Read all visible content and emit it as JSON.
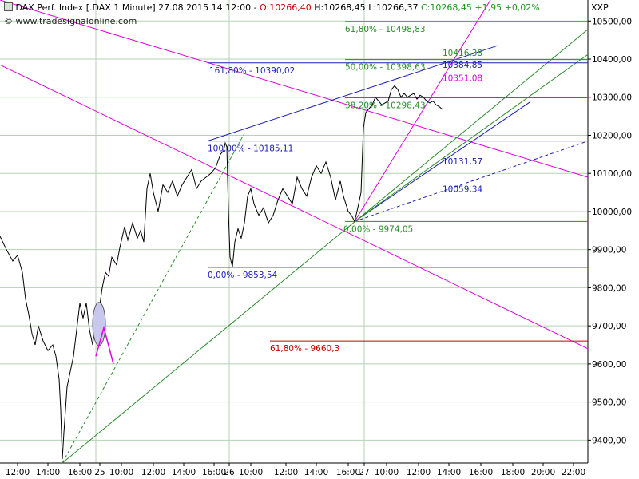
{
  "header": {
    "title": "DAX Perf. Index [.DAX  1 Minute] 27.08.2015 14:12:00 -",
    "ohlc": {
      "open": "O:10266,40",
      "high": "H:10268,45",
      "low": "L:10266,37",
      "close": "C:10268,45",
      "change": "+1,95 +0,02%"
    },
    "copyright": "© www.tradesignalonline.com",
    "symbol": "XXP"
  },
  "colors": {
    "price": "#000000",
    "grid": "#b4d2b4",
    "fib_blue": "#1e1eb4",
    "fib_green": "#2a8c2a",
    "magenta": "#e000e0",
    "red": "#c80000",
    "ellipse": "#c8c8ee"
  },
  "chart_data": {
    "type": "line",
    "ylim": [
      9340,
      10555
    ],
    "x_range": [
      0,
      730
    ],
    "y_ticks": [
      "10500,00",
      "10400,00",
      "10300,00",
      "10200,00",
      "10100,00",
      "10000,00",
      "9900,00",
      "9800,00",
      "9700,00",
      "9600,00",
      "9500,00",
      "9400,00"
    ],
    "y_tick_values": [
      10500,
      10400,
      10300,
      10200,
      10100,
      10000,
      9900,
      9800,
      9700,
      9600,
      9500,
      9400
    ],
    "x_ticks": [
      {
        "label": "12:00",
        "x": 22
      },
      {
        "label": "14:00",
        "x": 60
      },
      {
        "label": "16:00",
        "x": 100
      },
      {
        "label": "25",
        "x": 125
      },
      {
        "label": "10:00",
        "x": 152
      },
      {
        "label": "12:00",
        "x": 192
      },
      {
        "label": "14:00",
        "x": 230
      },
      {
        "label": "16:00",
        "x": 268
      },
      {
        "label": "26",
        "x": 287
      },
      {
        "label": "10:00",
        "x": 314
      },
      {
        "label": "12:00",
        "x": 358
      },
      {
        "label": "14:00",
        "x": 396
      },
      {
        "label": "16:00",
        "x": 436
      },
      {
        "label": "27",
        "x": 456
      },
      {
        "label": "10:00",
        "x": 484
      },
      {
        "label": "12:00",
        "x": 524
      },
      {
        "label": "14:00",
        "x": 562
      },
      {
        "label": "16:00",
        "x": 602
      },
      {
        "label": "18:00",
        "x": 642
      },
      {
        "label": "20:00",
        "x": 680
      },
      {
        "label": "22:00",
        "x": 718
      }
    ],
    "day_separators": [
      120,
      287,
      456
    ],
    "price": [
      [
        0,
        9935
      ],
      [
        8,
        9900
      ],
      [
        16,
        9870
      ],
      [
        22,
        9885
      ],
      [
        28,
        9840
      ],
      [
        32,
        9770
      ],
      [
        36,
        9730
      ],
      [
        40,
        9680
      ],
      [
        44,
        9650
      ],
      [
        48,
        9700
      ],
      [
        54,
        9660
      ],
      [
        60,
        9635
      ],
      [
        66,
        9650
      ],
      [
        70,
        9620
      ],
      [
        74,
        9560
      ],
      [
        76,
        9480
      ],
      [
        78,
        9350
      ],
      [
        80,
        9420
      ],
      [
        84,
        9540
      ],
      [
        88,
        9580
      ],
      [
        92,
        9620
      ],
      [
        96,
        9690
      ],
      [
        100,
        9760
      ],
      [
        104,
        9720
      ],
      [
        108,
        9760
      ],
      [
        112,
        9690
      ],
      [
        116,
        9650
      ],
      [
        120,
        9720
      ],
      [
        124,
        9740
      ],
      [
        128,
        9800
      ],
      [
        132,
        9840
      ],
      [
        136,
        9830
      ],
      [
        140,
        9880
      ],
      [
        146,
        9860
      ],
      [
        150,
        9905
      ],
      [
        156,
        9960
      ],
      [
        160,
        9925
      ],
      [
        166,
        9970
      ],
      [
        172,
        9930
      ],
      [
        176,
        9950
      ],
      [
        180,
        9920
      ],
      [
        184,
        10060
      ],
      [
        188,
        10100
      ],
      [
        192,
        10050
      ],
      [
        198,
        10000
      ],
      [
        204,
        10070
      ],
      [
        210,
        10050
      ],
      [
        216,
        10080
      ],
      [
        222,
        10040
      ],
      [
        228,
        10070
      ],
      [
        234,
        10090
      ],
      [
        240,
        10110
      ],
      [
        246,
        10060
      ],
      [
        252,
        10080
      ],
      [
        258,
        10090
      ],
      [
        264,
        10100
      ],
      [
        270,
        10115
      ],
      [
        276,
        10150
      ],
      [
        280,
        10160
      ],
      [
        282,
        10180
      ],
      [
        284,
        10170
      ],
      [
        286,
        10000
      ],
      [
        288,
        9880
      ],
      [
        291,
        9855
      ],
      [
        294,
        9920
      ],
      [
        298,
        9955
      ],
      [
        302,
        9930
      ],
      [
        306,
        9970
      ],
      [
        310,
        10040
      ],
      [
        314,
        10060
      ],
      [
        318,
        10020
      ],
      [
        324,
        9990
      ],
      [
        330,
        10010
      ],
      [
        336,
        9970
      ],
      [
        342,
        9990
      ],
      [
        348,
        10030
      ],
      [
        354,
        10060
      ],
      [
        360,
        10040
      ],
      [
        366,
        10020
      ],
      [
        372,
        10090
      ],
      [
        378,
        10060
      ],
      [
        384,
        10040
      ],
      [
        390,
        10090
      ],
      [
        396,
        10120
      ],
      [
        402,
        10100
      ],
      [
        408,
        10130
      ],
      [
        414,
        10090
      ],
      [
        420,
        10030
      ],
      [
        426,
        10080
      ],
      [
        430,
        10040
      ],
      [
        436,
        10000
      ],
      [
        440,
        9990
      ],
      [
        444,
        9974
      ],
      [
        448,
        10010
      ],
      [
        452,
        10050
      ],
      [
        455,
        10220
      ],
      [
        458,
        10260
      ],
      [
        462,
        10270
      ],
      [
        466,
        10280
      ],
      [
        470,
        10300
      ],
      [
        474,
        10290
      ],
      [
        478,
        10280
      ],
      [
        482,
        10285
      ],
      [
        486,
        10290
      ],
      [
        490,
        10320
      ],
      [
        494,
        10330
      ],
      [
        498,
        10320
      ],
      [
        502,
        10300
      ],
      [
        506,
        10310
      ],
      [
        510,
        10300
      ],
      [
        514,
        10305
      ],
      [
        518,
        10310
      ],
      [
        522,
        10295
      ],
      [
        526,
        10305
      ],
      [
        530,
        10300
      ],
      [
        534,
        10290
      ],
      [
        538,
        10285
      ],
      [
        542,
        10290
      ],
      [
        546,
        10280
      ],
      [
        550,
        10275
      ],
      [
        554,
        10268
      ]
    ],
    "levels": [
      {
        "label": "61,80% - 10498,83",
        "value": 10498.83,
        "color": "fib_green",
        "x1": 432,
        "x2": 736,
        "label_x": 432
      },
      {
        "label": "50,00% - 10398,63",
        "value": 10398.63,
        "color": "fib_green",
        "x1": 432,
        "x2": 736,
        "label_x": 432
      },
      {
        "label": "161,80% - 10390,02",
        "value": 10390.02,
        "color": "fib_blue",
        "x1": 260,
        "x2": 736,
        "label_x": 262
      },
      {
        "label": "38,20% - 10298,43",
        "value": 10298.43,
        "color": "fib_green",
        "x1": 432,
        "x2": 736,
        "label_x": 432
      },
      {
        "label": "100,00% - 10185,11",
        "value": 10185.11,
        "color": "fib_blue",
        "x1": 260,
        "x2": 736,
        "label_x": 260
      },
      {
        "label": "0,00% - 9974,05",
        "value": 9974.05,
        "color": "fib_green",
        "x1": 432,
        "x2": 736,
        "label_x": 430
      },
      {
        "label": "0,00% - 9853,54",
        "value": 9853.54,
        "color": "fib_blue",
        "x1": 260,
        "x2": 736,
        "label_x": 260
      },
      {
        "label": "61,80% - 9660,3",
        "value": 9660.3,
        "color": "red",
        "x1": 338,
        "x2": 736,
        "label_x": 338
      }
    ],
    "annotations": [
      {
        "label": "10416,38",
        "value": 10416.38,
        "color": "fib_green",
        "x": 554
      },
      {
        "label": "10384,85",
        "value": 10384.85,
        "color": "fib_blue",
        "x": 554
      },
      {
        "label": "10351,08",
        "value": 10351.08,
        "color": "magenta",
        "x": 554
      },
      {
        "label": "10131,57",
        "value": 10131.57,
        "color": "fib_blue",
        "x": 554
      },
      {
        "label": "10059,34",
        "value": 10059.34,
        "color": "fib_blue",
        "x": 554
      }
    ],
    "trendlines": [
      {
        "color": "magenta",
        "x1": 0,
        "v1": 10385,
        "x2": 736,
        "v2": 9640,
        "dash": false
      },
      {
        "color": "magenta",
        "x1": 0,
        "v1": 10555,
        "x2": 736,
        "v2": 10090,
        "dash": false
      },
      {
        "color": "magenta",
        "x1": 444,
        "v1": 9974,
        "x2": 614,
        "v2": 10555,
        "dash": false
      },
      {
        "color": "fib_blue",
        "x1": 260,
        "v1": 10185,
        "x2": 624,
        "v2": 10436,
        "dash": false
      },
      {
        "color": "fib_blue",
        "x1": 444,
        "v1": 9974,
        "x2": 664,
        "v2": 10288,
        "dash": false
      },
      {
        "color": "fib_blue",
        "x1": 444,
        "v1": 9974,
        "x2": 732,
        "v2": 10182,
        "dash": true
      },
      {
        "color": "fib_green",
        "x1": 78,
        "v1": 9340,
        "x2": 736,
        "v2": 10478,
        "dash": false
      },
      {
        "color": "fib_green",
        "x1": 444,
        "v1": 9974,
        "x2": 736,
        "v2": 10412,
        "dash": false
      },
      {
        "color": "fib_green",
        "x1": 78,
        "v1": 9340,
        "x2": 306,
        "v2": 10205,
        "dash": true
      }
    ]
  }
}
